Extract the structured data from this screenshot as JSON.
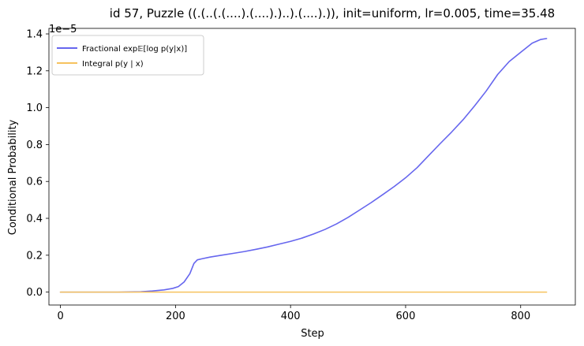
{
  "chart_data": {
    "type": "line",
    "title": "id 57, Puzzle ((.(..(.(....).(....).)..).(....).)), init=uniform, lr=0.005, time=35.48",
    "xlabel": "Step",
    "ylabel": "Conditional Probability",
    "offset_label": "1e−5",
    "xlim": [
      -20,
      895
    ],
    "ylim": [
      -0.07,
      1.43
    ],
    "xticks": [
      0,
      200,
      400,
      600,
      800
    ],
    "xtick_labels": [
      "0",
      "200",
      "400",
      "600",
      "800"
    ],
    "yticks": [
      0.0,
      0.2,
      0.4,
      0.6,
      0.8,
      1.0,
      1.2,
      1.4
    ],
    "ytick_labels": [
      "0.0",
      "0.2",
      "0.4",
      "0.6",
      "0.8",
      "1.0",
      "1.2",
      "1.4"
    ],
    "grid": false,
    "legend_position": "top-left",
    "series": [
      {
        "name": "Fractional exp𝔼[log p(y|x)]",
        "color": "#6666ee",
        "x": [
          0,
          50,
          100,
          140,
          160,
          180,
          195,
          205,
          215,
          225,
          232,
          238,
          245,
          260,
          280,
          300,
          320,
          340,
          360,
          380,
          400,
          420,
          440,
          460,
          480,
          500,
          520,
          540,
          560,
          580,
          600,
          620,
          640,
          660,
          680,
          700,
          720,
          740,
          760,
          780,
          800,
          820,
          835,
          845
        ],
        "values": [
          0.0,
          0.0,
          0.0,
          0.002,
          0.006,
          0.012,
          0.02,
          0.03,
          0.055,
          0.1,
          0.155,
          0.175,
          0.18,
          0.19,
          0.2,
          0.21,
          0.22,
          0.232,
          0.245,
          0.26,
          0.275,
          0.293,
          0.315,
          0.34,
          0.37,
          0.405,
          0.445,
          0.485,
          0.528,
          0.572,
          0.62,
          0.675,
          0.74,
          0.805,
          0.868,
          0.935,
          1.01,
          1.09,
          1.18,
          1.25,
          1.3,
          1.35,
          1.37,
          1.375
        ]
      },
      {
        "name": "Integral p(y | x)",
        "color": "#f6c25e",
        "x": [
          0,
          845
        ],
        "values": [
          0.0,
          0.0
        ]
      }
    ]
  }
}
